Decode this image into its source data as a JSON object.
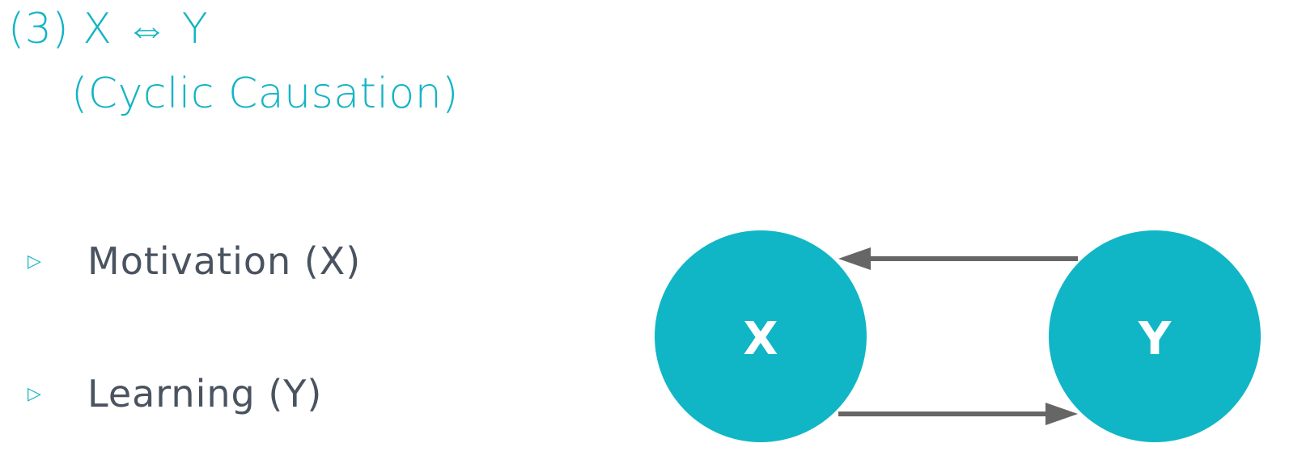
{
  "title": "(3) X ⇔ Y",
  "subtitle": "(Cyclic Causation)",
  "bullets": [
    {
      "marker": "▷",
      "text": "Motivation (X)"
    },
    {
      "marker": "▷",
      "text": "Learning (Y)"
    }
  ],
  "diagram": {
    "nodes": [
      {
        "id": "x",
        "label": "X"
      },
      {
        "id": "y",
        "label": "Y"
      }
    ],
    "edges": [
      {
        "from": "y",
        "to": "x"
      },
      {
        "from": "x",
        "to": "y"
      }
    ],
    "colors": {
      "node_fill": "#10b6c5",
      "arrow": "#666666",
      "title": "#14b4c4",
      "bullet_text": "#4a5360"
    }
  }
}
